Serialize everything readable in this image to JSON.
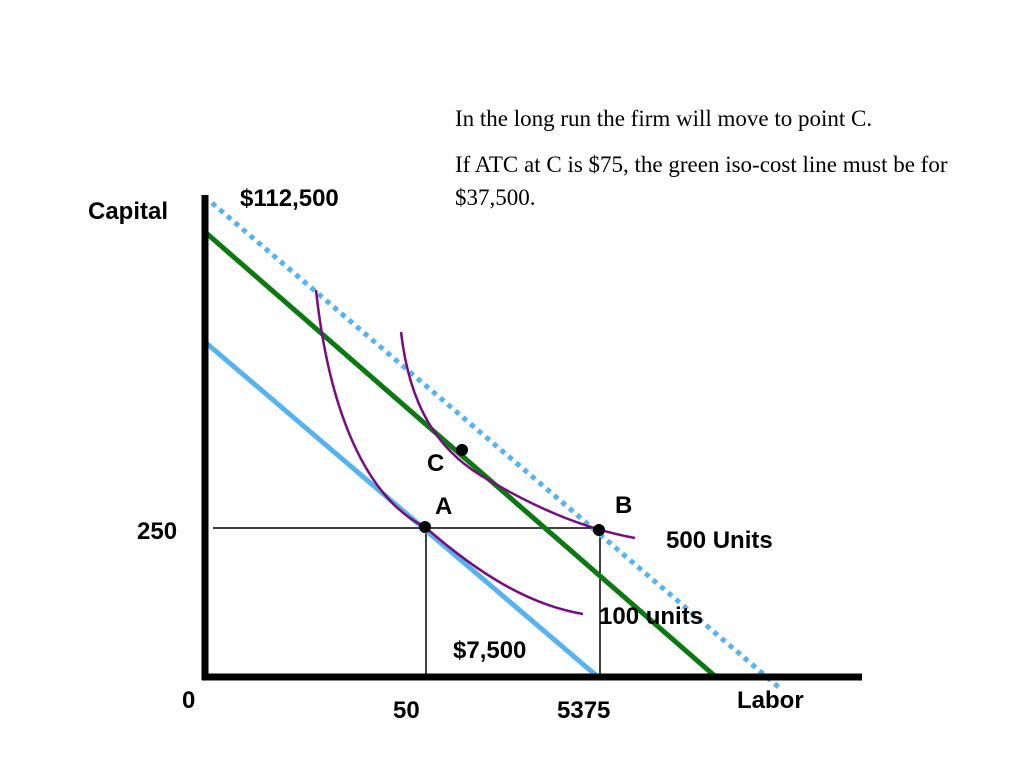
{
  "notes": [
    "In the long run the firm will move to point C.",
    "If ATC at C is $75, the green iso-cost line must be for $37,500."
  ],
  "axes": {
    "y_label": "Capital",
    "x_label": "Labor",
    "origin": "0"
  },
  "labels": {
    "top_cost": "$112,500",
    "capital_level": "250",
    "labor_a": "50",
    "labor_b": "5375",
    "blue_cost": "$7,500",
    "isoquant_100": "100 units",
    "isoquant_500": "500 Units"
  },
  "points": {
    "c": "C",
    "a": "A",
    "b": "B"
  }
}
